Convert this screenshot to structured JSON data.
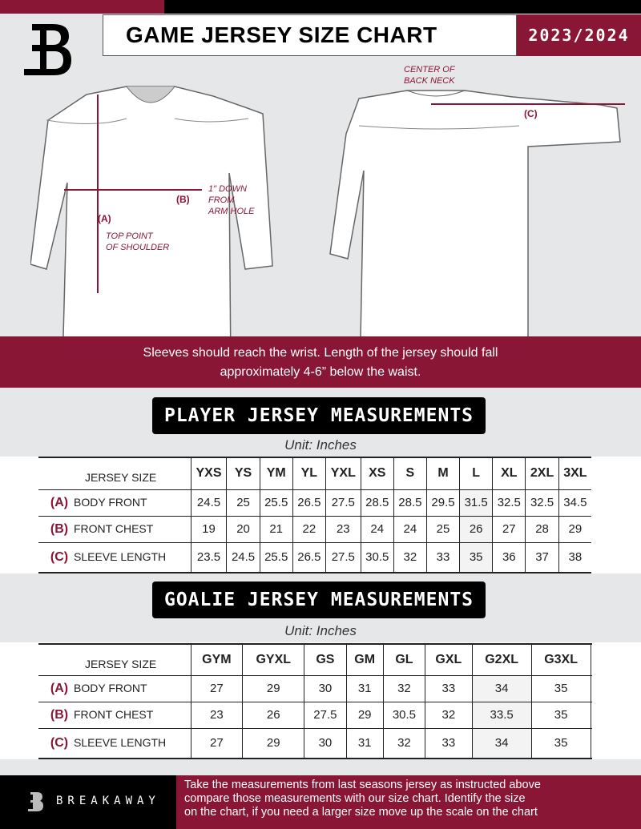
{
  "header": {
    "title": "GAME JERSEY SIZE CHART",
    "season": "2023/2024",
    "accent": "#8a1636"
  },
  "diagram": {
    "center_back_neck": [
      "CENTER OF",
      "BACK NECK"
    ],
    "label_a": "(A)",
    "label_b": "(B)",
    "label_c": "(C)",
    "arm_hole_note": [
      "1\" DOWN",
      "FROM",
      "ARM HOLE"
    ],
    "shoulder_note": [
      "TOP POINT",
      "OF SHOULDER"
    ]
  },
  "band": {
    "lines": [
      "Sleeves should reach the wrist. Length of the jersey should fall",
      "approximately 4-6” below the waist."
    ]
  },
  "player": {
    "title": "PLAYER JERSEY MEASUREMENTS",
    "unit": "Unit: Inches",
    "size_label": "JERSEY SIZE",
    "sizes": [
      "YXS",
      "YS",
      "YM",
      "YL",
      "YXL",
      "XS",
      "S",
      "M",
      "L",
      "XL",
      "2XL",
      "3XL"
    ],
    "rows": [
      {
        "letter": "(A)",
        "name": "BODY FRONT",
        "values": [
          "24.5",
          "25",
          "25.5",
          "26.5",
          "27.5",
          "28.5",
          "28.5",
          "29.5",
          "31.5",
          "32.5",
          "32.5",
          "34.5"
        ]
      },
      {
        "letter": "(B)",
        "name": "FRONT CHEST",
        "values": [
          "19",
          "20",
          "21",
          "22",
          "23",
          "24",
          "24",
          "25",
          "26",
          "27",
          "28",
          "29"
        ]
      },
      {
        "letter": "(C)",
        "name": "SLEEVE LENGTH",
        "values": [
          "23.5",
          "24.5",
          "25.5",
          "26.5",
          "27.5",
          "30.5",
          "32",
          "33",
          "35",
          "36",
          "37",
          "38"
        ]
      }
    ]
  },
  "goalie": {
    "title": "GOALIE JERSEY MEASUREMENTS",
    "unit": "Unit: Inches",
    "size_label": "JERSEY SIZE",
    "sizes": [
      "GYM",
      "GYXL",
      "GS",
      "GM",
      "GL",
      "GXL",
      "G2XL",
      "G3XL",
      ""
    ],
    "rows": [
      {
        "letter": "(A)",
        "name": "BODY FRONT",
        "values": [
          "27",
          "29",
          "30",
          "31",
          "32",
          "33",
          "34",
          "35",
          ""
        ]
      },
      {
        "letter": "(B)",
        "name": "FRONT CHEST",
        "values": [
          "23",
          "26",
          "27.5",
          "29",
          "30.5",
          "32",
          "33.5",
          "35",
          ""
        ]
      },
      {
        "letter": "(C)",
        "name": "SLEEVE LENGTH",
        "values": [
          "27",
          "29",
          "30",
          "31",
          "32",
          "33",
          "34",
          "35",
          ""
        ]
      }
    ]
  },
  "footer": {
    "brand": "BREAKAWAY",
    "lines": [
      "Take the measurements from last seasons jersey as instructed above",
      "compare those measurements  with our size chart. Identify the size",
      "on the chart, if you need a larger size move up the scale on the chart"
    ]
  }
}
